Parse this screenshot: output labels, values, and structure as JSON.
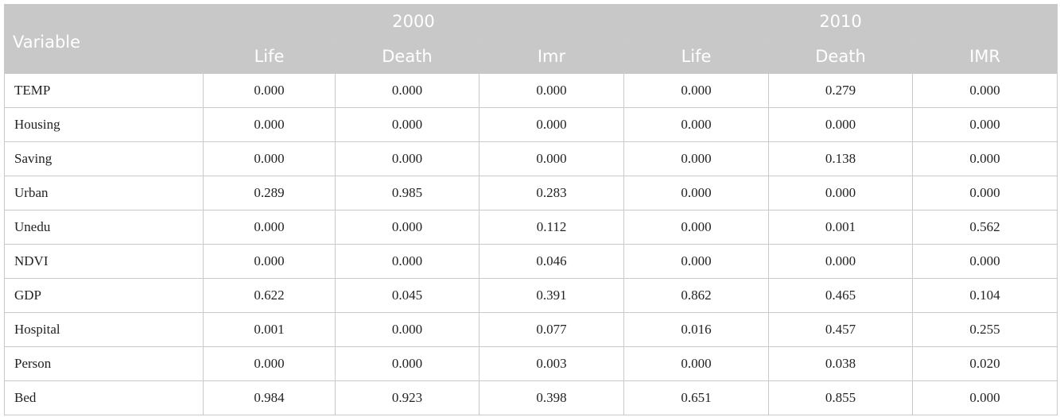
{
  "table": {
    "header": {
      "variable": "Variable",
      "year_2000": "2000",
      "year_2010": "2010",
      "subcolumns_2000": [
        "Life",
        "Death",
        "Imr"
      ],
      "subcolumns_2010": [
        "Life",
        "Death",
        "IMR"
      ]
    },
    "rows": [
      {
        "label": "TEMP",
        "values": [
          "0.000",
          "0.000",
          "0.000",
          "0.000",
          "0.279",
          "0.000"
        ]
      },
      {
        "label": "Housing",
        "values": [
          "0.000",
          "0.000",
          "0.000",
          "0.000",
          "0.000",
          "0.000"
        ]
      },
      {
        "label": "Saving",
        "values": [
          "0.000",
          "0.000",
          "0.000",
          "0.000",
          "0.138",
          "0.000"
        ]
      },
      {
        "label": "Urban",
        "values": [
          "0.289",
          "0.985",
          "0.283",
          "0.000",
          "0.000",
          "0.000"
        ]
      },
      {
        "label": "Unedu",
        "values": [
          "0.000",
          "0.000",
          "0.112",
          "0.000",
          "0.001",
          "0.562"
        ]
      },
      {
        "label": "NDVI",
        "values": [
          "0.000",
          "0.000",
          "0.046",
          "0.000",
          "0.000",
          "0.000"
        ]
      },
      {
        "label": "GDP",
        "values": [
          "0.622",
          "0.045",
          "0.391",
          "0.862",
          "0.465",
          "0.104"
        ]
      },
      {
        "label": "Hospital",
        "values": [
          "0.001",
          "0.000",
          "0.077",
          "0.016",
          "0.457",
          "0.255"
        ]
      },
      {
        "label": "Person",
        "values": [
          "0.000",
          "0.000",
          "0.003",
          "0.000",
          "0.038",
          "0.020"
        ]
      },
      {
        "label": "Bed",
        "values": [
          "0.984",
          "0.923",
          "0.398",
          "0.651",
          "0.855",
          "0.000"
        ]
      }
    ]
  }
}
